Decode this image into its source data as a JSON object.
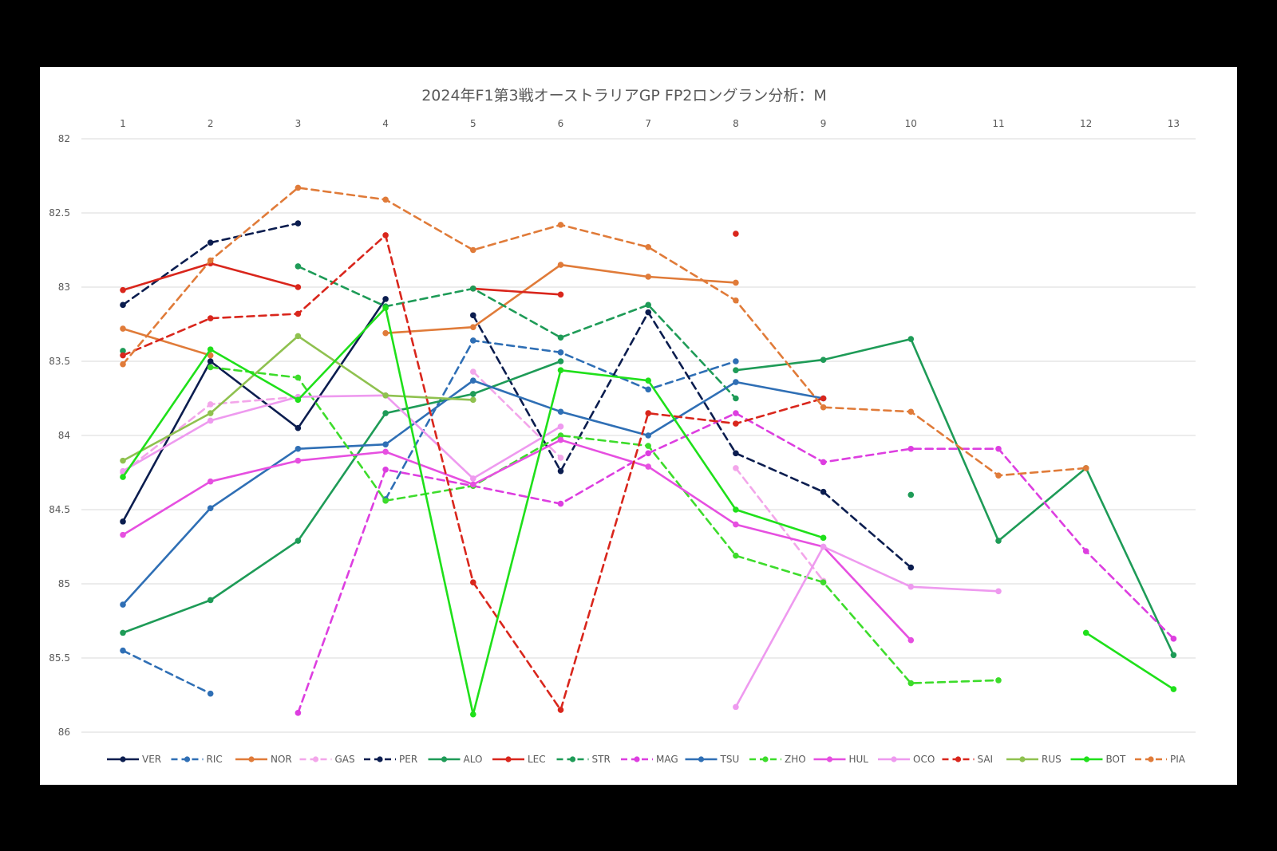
{
  "chart_data": {
    "type": "line",
    "title": "2024年F1第3戦オーストラリアGP FP2ロングラン分析：M",
    "xlabel": "",
    "ylabel": "",
    "x": [
      1,
      2,
      3,
      4,
      5,
      6,
      7,
      8,
      9,
      10,
      11,
      12,
      13
    ],
    "x_axis_position": "top",
    "yticks": [
      "82",
      "82.5",
      "83",
      "83.5",
      "84",
      "84.5",
      "85",
      "85.5",
      "86"
    ],
    "ylim": [
      82,
      86
    ],
    "y_inverted": true,
    "grid": true,
    "legend_position": "bottom",
    "series": [
      {
        "name": "VER",
        "color": "#0b1d4f",
        "dashed": false,
        "values": [
          84.58,
          83.5,
          83.95,
          83.08,
          null,
          null,
          null,
          null,
          null,
          null,
          null,
          null,
          null
        ]
      },
      {
        "name": "RIC",
        "color": "#2f6fb5",
        "dashed": true,
        "values": [
          85.45,
          85.74,
          null,
          84.43,
          83.36,
          83.44,
          83.69,
          83.5,
          null,
          null,
          null,
          null,
          null
        ]
      },
      {
        "name": "NOR",
        "color": "#e07b39",
        "dashed": false,
        "values": [
          83.28,
          83.46,
          null,
          83.31,
          83.27,
          82.85,
          82.93,
          82.97,
          null,
          null,
          null,
          null,
          null
        ]
      },
      {
        "name": "GAS",
        "color": "#f3a6ea",
        "dashed": true,
        "values": [
          84.25,
          83.79,
          83.74,
          null,
          83.57,
          84.15,
          null,
          84.22,
          84.98,
          null,
          null,
          null,
          null
        ]
      },
      {
        "name": "PER",
        "color": "#0b1d4f",
        "dashed": true,
        "values": [
          83.12,
          82.7,
          82.57,
          null,
          83.19,
          84.24,
          83.17,
          84.12,
          84.38,
          84.89,
          null,
          null,
          null
        ]
      },
      {
        "name": "ALO",
        "color": "#1e9b57",
        "dashed": false,
        "values": [
          85.33,
          85.11,
          84.71,
          83.85,
          83.72,
          83.5,
          null,
          83.56,
          83.49,
          83.35,
          84.71,
          84.22,
          85.48
        ]
      },
      {
        "name": "LEC",
        "color": "#d9261c",
        "dashed": false,
        "values": [
          83.02,
          82.84,
          83.0,
          null,
          83.01,
          83.05,
          null,
          82.64,
          null,
          null,
          null,
          null,
          null
        ]
      },
      {
        "name": "STR",
        "color": "#1e9b57",
        "dashed": true,
        "values": [
          83.43,
          null,
          82.86,
          83.13,
          83.01,
          83.34,
          83.12,
          83.75,
          null,
          84.4,
          null,
          null,
          null
        ]
      },
      {
        "name": "MAG",
        "color": "#dd3ee0",
        "dashed": true,
        "values": [
          null,
          null,
          85.87,
          84.23,
          84.34,
          84.46,
          84.12,
          83.85,
          84.18,
          84.09,
          84.09,
          84.78,
          85.37
        ]
      },
      {
        "name": "TSU",
        "color": "#2f6fb5",
        "dashed": false,
        "values": [
          85.14,
          84.49,
          84.09,
          84.06,
          83.63,
          83.84,
          84.0,
          83.64,
          83.75,
          null,
          null,
          null,
          null
        ]
      },
      {
        "name": "ZHO",
        "color": "#3ddc2b",
        "dashed": true,
        "values": [
          null,
          83.54,
          83.61,
          84.44,
          84.34,
          84.0,
          84.07,
          84.81,
          84.99,
          85.67,
          85.65,
          null,
          null
        ]
      },
      {
        "name": "HUL",
        "color": "#e64fe0",
        "dashed": false,
        "values": [
          84.67,
          84.31,
          84.17,
          84.11,
          84.33,
          84.03,
          84.21,
          84.6,
          84.75,
          85.38,
          null,
          null,
          null
        ]
      },
      {
        "name": "OCO",
        "color": "#ee9aef",
        "dashed": false,
        "values": [
          84.24,
          83.9,
          83.74,
          83.73,
          84.29,
          83.94,
          null,
          85.83,
          84.75,
          85.02,
          85.05,
          null,
          null
        ]
      },
      {
        "name": "SAI",
        "color": "#d9261c",
        "dashed": true,
        "values": [
          83.46,
          83.21,
          83.18,
          82.65,
          84.99,
          85.85,
          83.85,
          83.92,
          83.75,
          null,
          null,
          null,
          null
        ]
      },
      {
        "name": "RUS",
        "color": "#8fc14f",
        "dashed": false,
        "values": [
          84.17,
          83.85,
          83.33,
          83.73,
          83.76,
          null,
          null,
          null,
          null,
          null,
          null,
          null,
          null
        ]
      },
      {
        "name": "BOT",
        "color": "#1fe01a",
        "dashed": false,
        "values": [
          84.28,
          83.42,
          83.76,
          83.14,
          85.88,
          83.56,
          83.63,
          84.5,
          84.69,
          null,
          null,
          85.33,
          85.71
        ]
      },
      {
        "name": "PIA",
        "color": "#e07b39",
        "dashed": true,
        "values": [
          83.52,
          82.82,
          82.33,
          82.41,
          82.75,
          82.58,
          82.73,
          83.09,
          83.81,
          83.84,
          84.27,
          84.22,
          null
        ]
      }
    ]
  }
}
